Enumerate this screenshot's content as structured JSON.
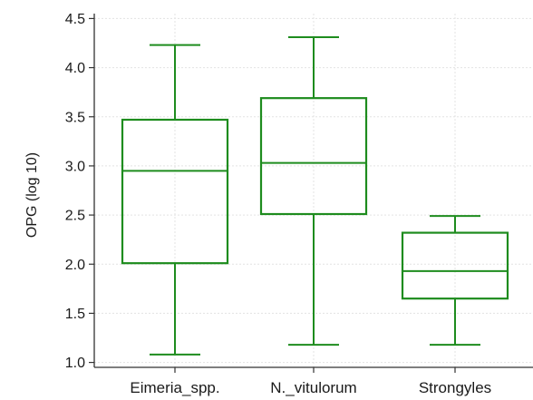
{
  "chart_data": {
    "type": "boxplot",
    "title": "",
    "xlabel": "",
    "ylabel": "OPG (log 10)",
    "ylim": [
      0.95,
      4.55
    ],
    "yticks": [
      "1.0",
      "1.5",
      "2.0",
      "2.5",
      "3.0",
      "3.5",
      "4.0",
      "4.5"
    ],
    "categories": [
      "Eimeria_spp.",
      "N._vitulorum",
      "Strongyles"
    ],
    "boxes": [
      {
        "min": 1.08,
        "q1": 2.01,
        "median": 2.95,
        "q3": 3.47,
        "max": 4.23
      },
      {
        "min": 1.18,
        "q1": 2.51,
        "median": 3.03,
        "q3": 3.69,
        "max": 4.31
      },
      {
        "min": 1.18,
        "q1": 1.65,
        "median": 1.93,
        "q3": 2.32,
        "max": 2.49
      }
    ],
    "grid": true,
    "colors": {
      "box": "#1e8c1e",
      "axis": "#333333",
      "grid": "#e3e3e3"
    }
  }
}
